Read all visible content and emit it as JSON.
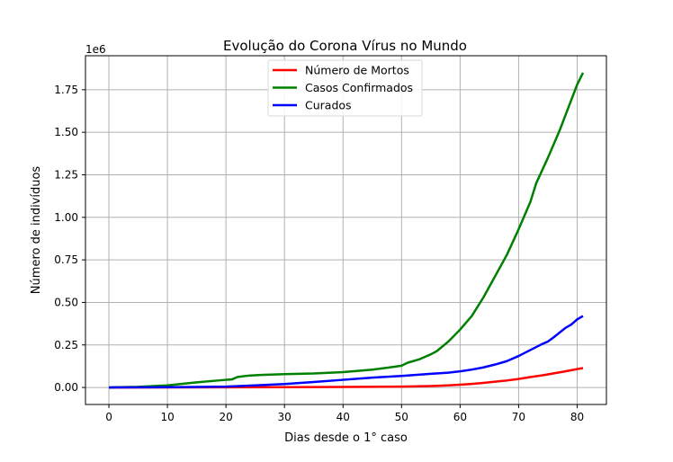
{
  "chart_data": {
    "type": "line",
    "title": "Evolução do Corona Vírus no Mundo",
    "xlabel": "Dias desde o 1° caso",
    "ylabel": "Número de indivíduos",
    "y_scale_label": "1e6",
    "xlim": [
      -4,
      85
    ],
    "ylim": [
      -0.1,
      1.95
    ],
    "x_ticks": [
      0,
      10,
      20,
      30,
      40,
      50,
      60,
      70,
      80
    ],
    "y_ticks": [
      0.0,
      0.25,
      0.5,
      0.75,
      1.0,
      1.25,
      1.5,
      1.75
    ],
    "y_tick_labels": [
      "0.00",
      "0.25",
      "0.50",
      "0.75",
      "1.00",
      "1.25",
      "1.50",
      "1.75"
    ],
    "grid": true,
    "legend_position": "top-center",
    "series": [
      {
        "name": "Número de Mortos",
        "color": "#ff0000",
        "points": [
          [
            0,
            0.0
          ],
          [
            10,
            0.0002
          ],
          [
            20,
            0.001
          ],
          [
            30,
            0.002
          ],
          [
            40,
            0.003
          ],
          [
            50,
            0.005
          ],
          [
            55,
            0.008
          ],
          [
            58,
            0.012
          ],
          [
            60,
            0.016
          ],
          [
            62,
            0.021
          ],
          [
            64,
            0.027
          ],
          [
            66,
            0.034
          ],
          [
            68,
            0.041
          ],
          [
            70,
            0.05
          ],
          [
            72,
            0.061
          ],
          [
            74,
            0.071
          ],
          [
            76,
            0.083
          ],
          [
            78,
            0.095
          ],
          [
            80,
            0.108
          ],
          [
            81,
            0.114
          ]
        ]
      },
      {
        "name": "Casos Confirmados",
        "color": "#008000",
        "points": [
          [
            0,
            0.0
          ],
          [
            5,
            0.004
          ],
          [
            10,
            0.012
          ],
          [
            15,
            0.03
          ],
          [
            20,
            0.045
          ],
          [
            21,
            0.047
          ],
          [
            22,
            0.062
          ],
          [
            24,
            0.07
          ],
          [
            26,
            0.074
          ],
          [
            30,
            0.078
          ],
          [
            35,
            0.082
          ],
          [
            40,
            0.09
          ],
          [
            45,
            0.105
          ],
          [
            48,
            0.118
          ],
          [
            50,
            0.128
          ],
          [
            51,
            0.145
          ],
          [
            53,
            0.165
          ],
          [
            55,
            0.195
          ],
          [
            56,
            0.213
          ],
          [
            58,
            0.27
          ],
          [
            60,
            0.34
          ],
          [
            62,
            0.42
          ],
          [
            64,
            0.53
          ],
          [
            66,
            0.655
          ],
          [
            68,
            0.78
          ],
          [
            70,
            0.93
          ],
          [
            72,
            1.09
          ],
          [
            73,
            1.2
          ],
          [
            75,
            1.35
          ],
          [
            77,
            1.51
          ],
          [
            78,
            1.6
          ],
          [
            79,
            1.69
          ],
          [
            80,
            1.78
          ],
          [
            81,
            1.85
          ]
        ]
      },
      {
        "name": "Curados",
        "color": "#0000ff",
        "points": [
          [
            0,
            0.0
          ],
          [
            10,
            0.0015
          ],
          [
            15,
            0.003
          ],
          [
            20,
            0.005
          ],
          [
            25,
            0.012
          ],
          [
            30,
            0.02
          ],
          [
            35,
            0.032
          ],
          [
            40,
            0.045
          ],
          [
            45,
            0.058
          ],
          [
            50,
            0.068
          ],
          [
            55,
            0.08
          ],
          [
            58,
            0.087
          ],
          [
            60,
            0.095
          ],
          [
            62,
            0.105
          ],
          [
            64,
            0.118
          ],
          [
            66,
            0.135
          ],
          [
            68,
            0.155
          ],
          [
            70,
            0.185
          ],
          [
            72,
            0.22
          ],
          [
            74,
            0.255
          ],
          [
            75,
            0.27
          ],
          [
            76,
            0.295
          ],
          [
            78,
            0.35
          ],
          [
            79,
            0.37
          ],
          [
            80,
            0.4
          ],
          [
            81,
            0.42
          ]
        ]
      }
    ]
  }
}
